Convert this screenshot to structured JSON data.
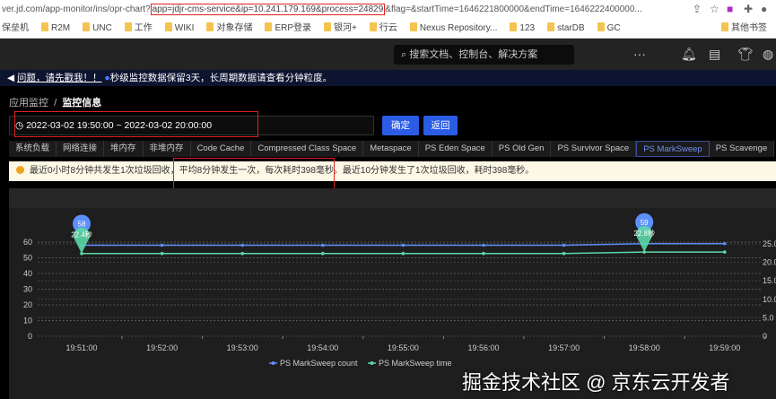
{
  "browser": {
    "url_prefix": "ver.jd.com/app-monitor/ins/opr-chart?",
    "url_highlight": "app=jdjr-cms-service&ip=10.241.179.169&process=24829",
    "url_suffix": "&flag=&startTime=1646221800000&endTime=1646222400000...",
    "bookmarks": [
      "保垒机",
      "R2M",
      "UNC",
      "工作",
      "WIKI",
      "对象存储",
      "ERP登录",
      "银河+",
      "行云",
      "Nexus Repository...",
      "123",
      "starDB",
      "GC",
      "其他书签"
    ]
  },
  "header": {
    "search_placeholder": "搜索文档、控制台、解决方案"
  },
  "notice": {
    "link": "问题，请先戳我！！",
    "text": "秒级监控数据保留3天，长周期数据请查看分钟粒度。"
  },
  "breadcrumb": {
    "parent": "应用监控",
    "sep": "/",
    "current": "监控信息"
  },
  "range": {
    "value": "2022-03-02 19:50:00 ~ 2022-03-02 20:00:00",
    "confirm": "确定",
    "back": "返回"
  },
  "tabs": [
    "系统负载",
    "网络连接",
    "堆内存",
    "非堆内存",
    "Code Cache",
    "Compressed Class Space",
    "Metaspace",
    "PS Eden Space",
    "PS Old Gen",
    "PS Survivor Space",
    "PS MarkSweep",
    "PS Scavenge"
  ],
  "active_tab": "PS MarkSweep",
  "alert": {
    "text": "最近0小时8分钟共发生1次垃圾回收，平均8分钟发生一次，每次耗时398毫秒。最近10分钟发生了1次垃圾回收，耗时398毫秒。"
  },
  "watermark": "掘金技术社区 @ 京东云开发者",
  "chart_data": {
    "type": "line",
    "x": [
      "19:51:00",
      "19:52:00",
      "19:53:00",
      "19:54:00",
      "19:55:00",
      "19:56:00",
      "19:57:00",
      "19:58:00",
      "19:59:00"
    ],
    "y_left": {
      "ticks": [
        "0",
        "10",
        "20",
        "30",
        "40",
        "50",
        "60"
      ],
      "range": [
        0,
        70
      ]
    },
    "y_right": {
      "ticks": [
        "0",
        "5.0",
        "10.0",
        "15.0",
        "20.0",
        "25.0"
      ],
      "range": [
        0,
        25.5
      ]
    },
    "series": [
      {
        "name": "PS MarkSweep count",
        "axis": "left",
        "color": "#5b8ff9",
        "values": [
          58,
          58,
          58,
          58,
          58,
          58,
          58,
          59,
          59
        ]
      },
      {
        "name": "PS MarkSweep time",
        "axis": "right",
        "color": "#5ad8a6",
        "values": [
          22.4,
          22.4,
          22.4,
          22.4,
          22.4,
          22.4,
          22.4,
          22.8,
          22.8
        ]
      }
    ],
    "markers": [
      {
        "series": 0,
        "index": 0,
        "label": "58"
      },
      {
        "series": 0,
        "index": 7,
        "label": "59"
      },
      {
        "series": 1,
        "index": 0,
        "label": "22.4秒"
      },
      {
        "series": 1,
        "index": 7,
        "label": "22.8秒"
      }
    ],
    "grid": true,
    "legend": "bottom"
  }
}
